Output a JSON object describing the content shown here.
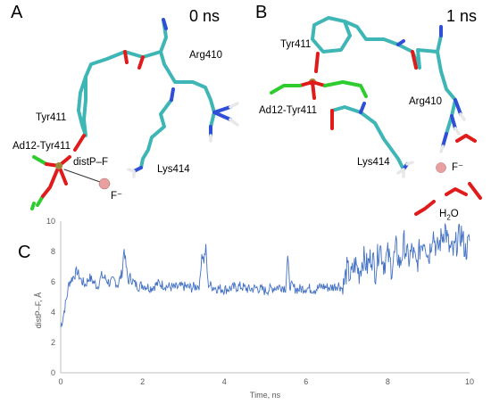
{
  "panels": {
    "A": {
      "letter": "A",
      "time": "0 ns",
      "labels": {
        "arg": "Arg410",
        "tyr": "Tyr411",
        "ad12": "Ad12-Tyr411",
        "dist": "distP–F",
        "lys": "Lys414",
        "fluoride": "F⁻"
      }
    },
    "B": {
      "letter": "B",
      "time": "1 ns",
      "labels": {
        "tyr": "Tyr411",
        "ad12": "Ad12-Tyr411",
        "arg": "Arg410",
        "lys": "Lys414",
        "fluoride": "F⁻",
        "water_main": "H",
        "water_sub": "2",
        "water_end": "O"
      }
    },
    "C": {
      "letter": "C"
    }
  },
  "colors": {
    "carbon": "#3fb6b6",
    "nitrogen": "#2f4fd6",
    "oxygen": "#e01b1b",
    "phosphorus": "#9c8a3a",
    "adduct_carbon": "#2ecc2e",
    "hydrogen": "#f0f0f0",
    "fluoride": "#e8a0a0",
    "series": "#4472c4"
  },
  "chart_data": {
    "type": "line",
    "xlabel": "Time, ns",
    "ylabel": "distP–F, Å",
    "xlim": [
      0,
      10
    ],
    "ylim": [
      0,
      10
    ],
    "xticks": [
      "0",
      "2",
      "4",
      "6",
      "8",
      "10"
    ],
    "yticks": [
      "0",
      "2",
      "4",
      "6",
      "8",
      "10"
    ],
    "grid": false,
    "legend": "none",
    "series": [
      {
        "x": [
          0,
          0.05,
          0.1,
          0.15,
          0.2,
          0.3,
          0.4,
          0.5,
          0.6,
          0.7,
          0.8,
          0.9,
          1.0,
          1.1,
          1.2,
          1.3,
          1.4,
          1.5,
          1.55,
          1.6,
          1.65,
          1.7,
          1.8,
          1.9,
          2.0,
          2.2,
          2.4,
          2.6,
          2.8,
          3.0,
          3.2,
          3.4,
          3.45,
          3.5,
          3.55,
          3.6,
          3.7,
          3.8,
          4.0,
          4.2,
          4.4,
          4.6,
          4.8,
          5.0,
          5.2,
          5.4,
          5.5,
          5.55,
          5.6,
          5.7,
          5.8,
          6.0,
          6.2,
          6.4,
          6.6,
          6.8,
          6.9,
          7.0,
          7.1,
          7.2,
          7.3,
          7.4,
          7.5,
          7.6,
          7.7,
          7.8,
          7.9,
          8.0,
          8.1,
          8.2,
          8.3,
          8.4,
          8.5,
          8.6,
          8.7,
          8.8,
          8.9,
          9.0,
          9.1,
          9.2,
          9.3,
          9.4,
          9.5,
          9.6,
          9.7,
          9.8,
          9.9,
          10.0
        ],
        "y": [
          3.0,
          3.6,
          4.3,
          5.0,
          5.9,
          6.3,
          6.7,
          6.1,
          5.8,
          6.3,
          6.0,
          5.7,
          6.4,
          6.2,
          5.9,
          6.1,
          5.8,
          6.6,
          8.2,
          7.0,
          6.0,
          6.3,
          5.9,
          5.7,
          5.8,
          5.6,
          5.9,
          5.7,
          5.6,
          5.7,
          5.6,
          5.8,
          7.9,
          7.4,
          8.2,
          5.9,
          5.7,
          5.6,
          5.5,
          5.6,
          5.7,
          5.5,
          5.6,
          5.4,
          5.6,
          5.7,
          5.6,
          7.6,
          5.8,
          5.6,
          5.5,
          5.6,
          5.5,
          5.7,
          5.6,
          5.8,
          5.5,
          6.8,
          6.3,
          7.2,
          6.6,
          7.6,
          7.0,
          7.8,
          6.7,
          8.5,
          7.2,
          7.8,
          6.9,
          8.2,
          7.1,
          8.6,
          7.4,
          8.1,
          7.0,
          8.4,
          8.9,
          7.6,
          9.4,
          8.0,
          8.8,
          9.6,
          8.2,
          7.9,
          8.7,
          9.2,
          8.0,
          8.7
        ]
      }
    ]
  }
}
